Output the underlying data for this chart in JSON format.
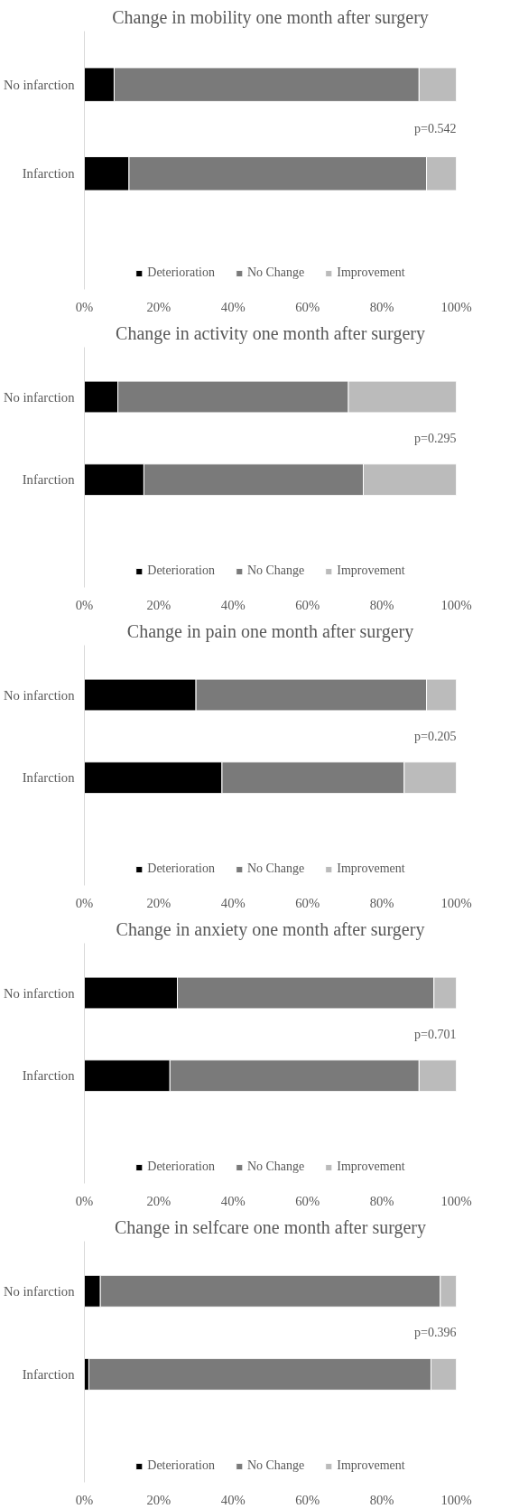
{
  "chart_data": [
    {
      "type": "bar",
      "orientation": "horizontal",
      "stacked": true,
      "title": "Change in mobility one month after surgery",
      "categories": [
        "No infarction",
        "Infarction"
      ],
      "series": [
        {
          "name": "Deterioration",
          "color": "#000000",
          "values": [
            8,
            12
          ]
        },
        {
          "name": "No Change",
          "color": "#7a7a7a",
          "values": [
            82,
            80
          ]
        },
        {
          "name": "Improvement",
          "color": "#bbbbbb",
          "values": [
            10,
            8
          ]
        }
      ],
      "xlim": [
        0,
        100
      ],
      "xticks": [
        {
          "value": 0,
          "label": "0%"
        },
        {
          "value": 20,
          "label": "20%"
        },
        {
          "value": 40,
          "label": "40%"
        },
        {
          "value": 60,
          "label": "60%"
        },
        {
          "value": 80,
          "label": "80%"
        },
        {
          "value": 100,
          "label": "100%"
        }
      ],
      "annotations": [
        "p=0.542"
      ],
      "legend": "bottom",
      "grid": false
    },
    {
      "type": "bar",
      "orientation": "horizontal",
      "stacked": true,
      "title": "Change in activity one month after surgery",
      "categories": [
        "No infarction",
        "Infarction"
      ],
      "series": [
        {
          "name": "Deterioration",
          "color": "#000000",
          "values": [
            9,
            16
          ]
        },
        {
          "name": "No Change",
          "color": "#7a7a7a",
          "values": [
            62,
            59
          ]
        },
        {
          "name": "Improvement",
          "color": "#bbbbbb",
          "values": [
            29,
            25
          ]
        }
      ],
      "xlim": [
        0,
        100
      ],
      "xticks": [
        {
          "value": 0,
          "label": "0%"
        },
        {
          "value": 20,
          "label": "20%"
        },
        {
          "value": 40,
          "label": "40%"
        },
        {
          "value": 60,
          "label": "60%"
        },
        {
          "value": 80,
          "label": "80%"
        },
        {
          "value": 100,
          "label": "100%"
        }
      ],
      "annotations": [
        "p=0.295"
      ],
      "legend": "bottom",
      "grid": false
    },
    {
      "type": "bar",
      "orientation": "horizontal",
      "stacked": true,
      "title": "Change in pain one month after surgery",
      "categories": [
        "No infarction",
        "Infarction"
      ],
      "series": [
        {
          "name": "Deterioration",
          "color": "#000000",
          "values": [
            30,
            37
          ]
        },
        {
          "name": "No Change",
          "color": "#7a7a7a",
          "values": [
            62,
            49
          ]
        },
        {
          "name": "Improvement",
          "color": "#bbbbbb",
          "values": [
            8,
            14
          ]
        }
      ],
      "xlim": [
        0,
        100
      ],
      "xticks": [
        {
          "value": 0,
          "label": "0%"
        },
        {
          "value": 20,
          "label": "20%"
        },
        {
          "value": 40,
          "label": "40%"
        },
        {
          "value": 60,
          "label": "60%"
        },
        {
          "value": 80,
          "label": "80%"
        },
        {
          "value": 100,
          "label": "100%"
        }
      ],
      "annotations": [
        "p=0.205"
      ],
      "legend": "bottom",
      "grid": false
    },
    {
      "type": "bar",
      "orientation": "horizontal",
      "stacked": true,
      "title": "Change in anxiety one month after surgery",
      "categories": [
        "No infarction",
        "Infarction"
      ],
      "series": [
        {
          "name": "Deterioration",
          "color": "#000000",
          "values": [
            25,
            23
          ]
        },
        {
          "name": "No Change",
          "color": "#7a7a7a",
          "values": [
            69,
            67
          ]
        },
        {
          "name": "Improvement",
          "color": "#bbbbbb",
          "values": [
            6,
            10
          ]
        }
      ],
      "xlim": [
        0,
        100
      ],
      "xticks": [
        {
          "value": 0,
          "label": "0%"
        },
        {
          "value": 20,
          "label": "20%"
        },
        {
          "value": 40,
          "label": "40%"
        },
        {
          "value": 60,
          "label": "60%"
        },
        {
          "value": 80,
          "label": "80%"
        },
        {
          "value": 100,
          "label": "100%"
        }
      ],
      "annotations": [
        "p=0.701"
      ],
      "legend": "bottom",
      "grid": false
    },
    {
      "type": "bar",
      "orientation": "horizontal",
      "stacked": true,
      "title": "Change in selfcare one month after surgery",
      "categories": [
        "No infarction",
        "Infarction"
      ],
      "series": [
        {
          "name": "Deterioration",
          "color": "#000000",
          "values": [
            4.3,
            1.2
          ]
        },
        {
          "name": "No Change",
          "color": "#7a7a7a",
          "values": [
            91.4,
            92
          ]
        },
        {
          "name": "Improvement",
          "color": "#bbbbbb",
          "values": [
            4.3,
            6.8
          ]
        }
      ],
      "xlim": [
        0,
        100
      ],
      "xticks": [
        {
          "value": 0,
          "label": "0%"
        },
        {
          "value": 20,
          "label": "20%"
        },
        {
          "value": 40,
          "label": "40%"
        },
        {
          "value": 60,
          "label": "60%"
        },
        {
          "value": 80,
          "label": "80%"
        },
        {
          "value": 100,
          "label": "100%"
        }
      ],
      "annotations": [
        "p=0.396"
      ],
      "legend": "bottom",
      "grid": false
    }
  ]
}
